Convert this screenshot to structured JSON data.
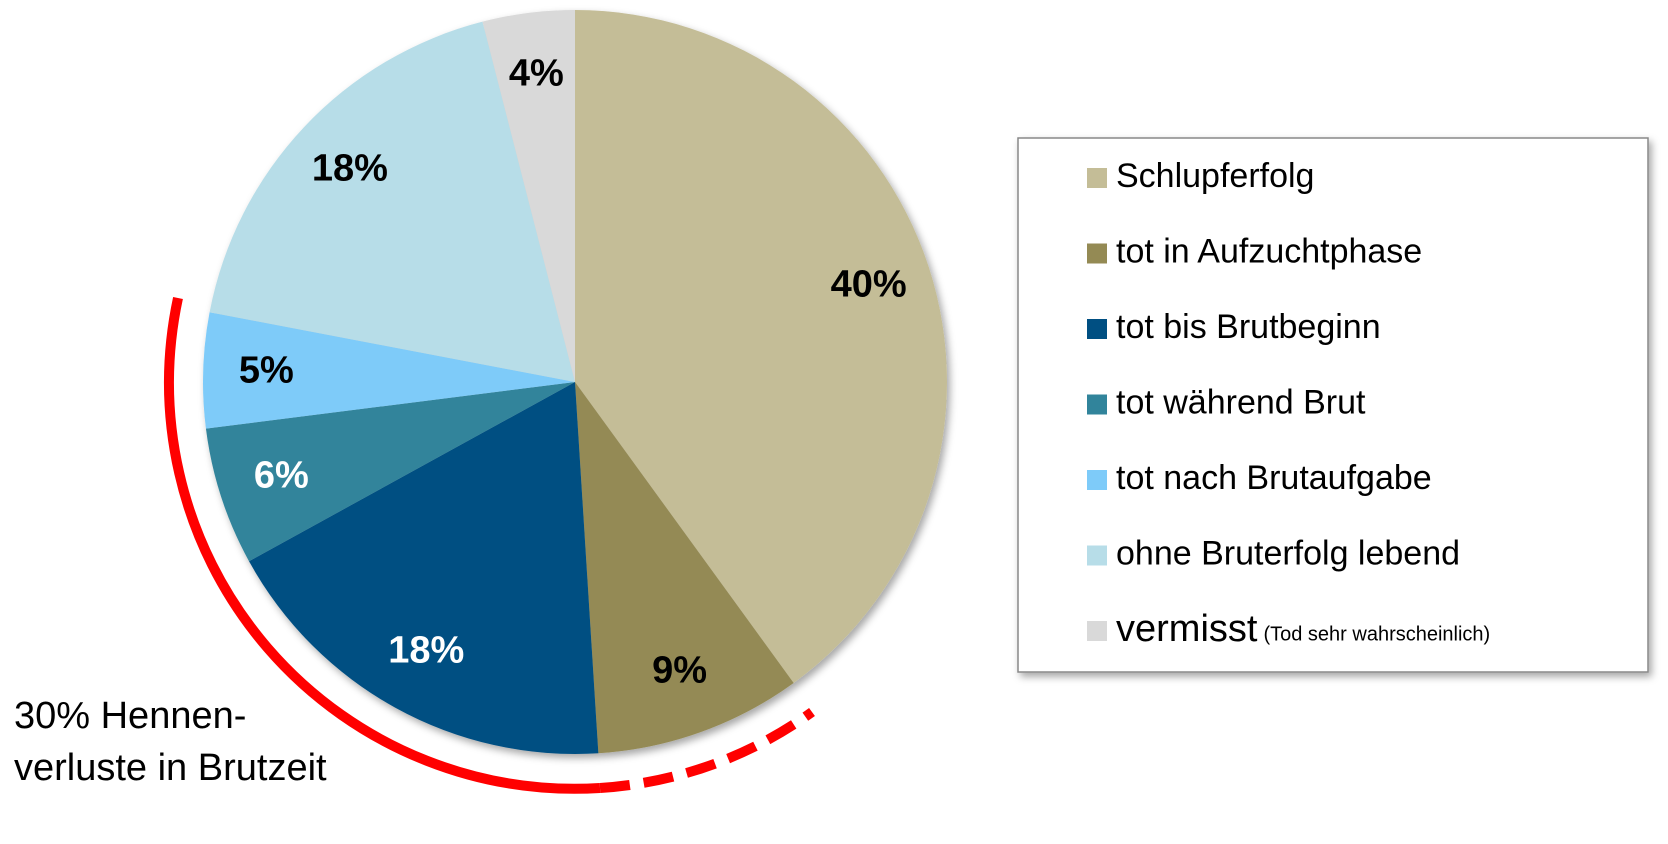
{
  "chart_data": {
    "type": "pie",
    "categories": [
      "Schlupferfolg",
      "tot in Aufzuchtphase",
      "tot bis Brutbeginn",
      "tot während Brut",
      "tot nach Brutaufgabe",
      "ohne Bruterfolg lebend",
      "vermisst"
    ],
    "values": [
      40,
      9,
      18,
      6,
      5,
      18,
      4
    ],
    "value_labels": [
      "40%",
      "9%",
      "18%",
      "6%",
      "5%",
      "18%",
      "4%"
    ],
    "colors": [
      "#c4bd97",
      "#948a54",
      "#004f82",
      "#31849b",
      "#7ecbf9",
      "#b7dde8",
      "#d9d9d9"
    ],
    "label_colors": [
      "#000000",
      "#000000",
      "#ffffff",
      "#ffffff",
      "#000000",
      "#000000",
      "#000000"
    ],
    "legend_note": "(Tod sehr wahrscheinlich)",
    "annotation": [
      "30% Hennen-",
      "verluste in Brutzeit"
    ],
    "legend": "right"
  }
}
